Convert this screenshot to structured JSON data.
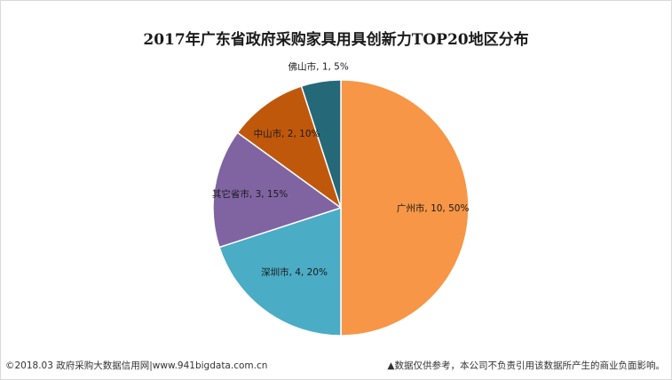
{
  "chart_data": {
    "type": "pie",
    "title": "2017年广东省政府采购家具用具创新力TOP20地区分布",
    "slices": [
      {
        "name": "广州市",
        "value": 10,
        "percent": "50%",
        "color": "#f79646"
      },
      {
        "name": "深圳市",
        "value": 4,
        "percent": "20%",
        "color": "#4bacc6"
      },
      {
        "name": "其它省市",
        "value": 3,
        "percent": "15%",
        "color": "#8064a2"
      },
      {
        "name": "中山市",
        "value": 2,
        "percent": "10%",
        "color": "#c0580c"
      },
      {
        "name": "佛山市",
        "value": 1,
        "percent": "5%",
        "color": "#256878"
      }
    ],
    "slice_labels": [
      "广州市, 10, 50%",
      "深圳市, 4, 20%",
      "其它省市, 3, 15%",
      "中山市, 2, 10%",
      "佛山市, 1, 5%"
    ]
  },
  "footer": {
    "left": "©2018.03 政府采购大数据信用网|www.941bigdata.com.cn",
    "right": "▲数据仅供参考，本公司不负责引用该数据所产生的商业负面影响。"
  }
}
